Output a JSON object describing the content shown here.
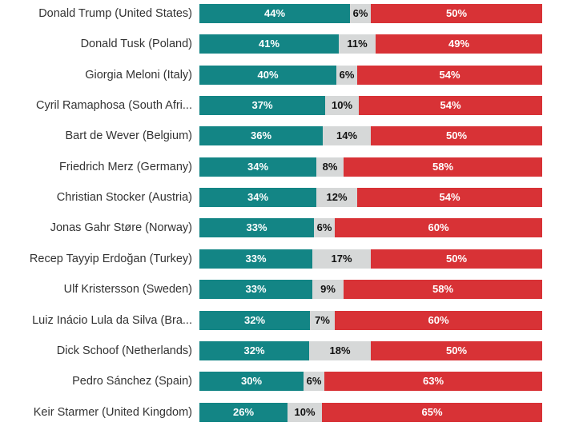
{
  "colors": {
    "approve": "#138585",
    "neutral": "#d6d8d8",
    "disapprove": "#d83236"
  },
  "chart_data": {
    "type": "bar",
    "stacked": true,
    "orientation": "horizontal",
    "categories": [
      "Donald Trump (United States)",
      "Donald Tusk (Poland)",
      "Giorgia Meloni (Italy)",
      "Cyril Ramaphosa (South Afri...",
      "Bart de Wever (Belgium)",
      "Friedrich Merz (Germany)",
      "Christian Stocker (Austria)",
      "Jonas Gahr Støre (Norway)",
      "Recep Tayyip Erdoğan (Turkey)",
      "Ulf Kristersson (Sweden)",
      "Luiz Inácio Lula da Silva (Bra...",
      "Dick Schoof (Netherlands)",
      "Pedro Sánchez (Spain)",
      "Keir Starmer (United Kingdom)"
    ],
    "series": [
      {
        "values": [
          44,
          41,
          40,
          37,
          36,
          34,
          34,
          33,
          33,
          33,
          32,
          32,
          30,
          26
        ]
      },
      {
        "values": [
          6,
          11,
          6,
          10,
          14,
          8,
          12,
          6,
          17,
          9,
          7,
          18,
          6,
          10
        ]
      },
      {
        "values": [
          50,
          49,
          54,
          54,
          50,
          58,
          54,
          60,
          50,
          58,
          60,
          50,
          63,
          65
        ]
      }
    ],
    "value_suffix": "%"
  }
}
